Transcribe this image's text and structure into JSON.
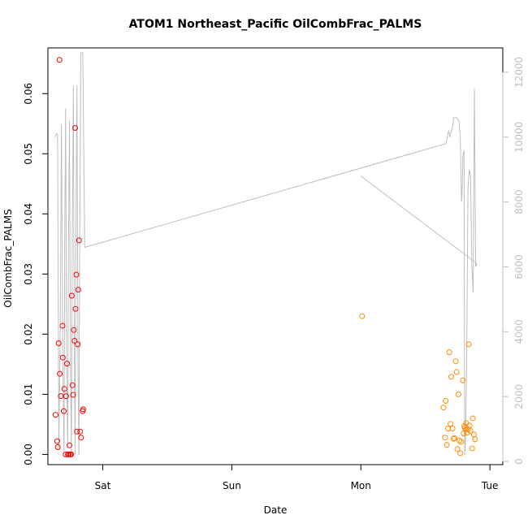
{
  "chart_data": {
    "type": "scatter",
    "title": "ATOM1 Northeast_Pacific OilCombFrac_PALMS",
    "xlabel": "Date",
    "ylabel": "OilCombFrac_PALMS",
    "x_unit": "days from Friday 00:00 (Sat = 1, Sun = 2, Mon = 3, Tue = 4)",
    "x_range": [
      0.575,
      4.1
    ],
    "x_ticks": [
      {
        "label": "Sat",
        "value": 1
      },
      {
        "label": "Sun",
        "value": 2
      },
      {
        "label": "Mon",
        "value": 3
      },
      {
        "label": "Tue",
        "value": 4
      }
    ],
    "ylim": [
      -0.0017,
      0.0676
    ],
    "y_ticks": [
      0.0,
      0.01,
      0.02,
      0.03,
      0.04,
      0.05,
      0.06
    ],
    "y_tick_labels": [
      "0.00",
      "0.01",
      "0.02",
      "0.03",
      "0.04",
      "0.05",
      "0.06"
    ],
    "y2_range": [
      -100,
      12750
    ],
    "y2_ticks": [
      0,
      2000,
      4000,
      6000,
      8000,
      10000,
      12000
    ],
    "y2_tick_labels": [
      "0",
      "2000",
      "4000",
      "6000",
      "8000",
      "10000",
      "12000"
    ],
    "grid": false,
    "legend": "none",
    "colors": {
      "red": "#ff0000",
      "orange": "#ff8c00",
      "gray": "#bebebe",
      "axis": "#000000"
    },
    "series": [
      {
        "color": "red",
        "points": [
          [
            0.635,
            0.0066
          ],
          [
            0.647,
            0.0022
          ],
          [
            0.652,
            0.0012
          ],
          [
            0.658,
            0.0185
          ],
          [
            0.665,
            0.0656
          ],
          [
            0.667,
            0.0134
          ],
          [
            0.675,
            0.0097
          ],
          [
            0.688,
            0.0214
          ],
          [
            0.69,
            0.0161
          ],
          [
            0.698,
            0.0072
          ],
          [
            0.702,
            0.0109
          ],
          [
            0.712,
            0.0
          ],
          [
            0.716,
            0.0097
          ],
          [
            0.723,
            0.0151
          ],
          [
            0.73,
            0.0
          ],
          [
            0.737,
            0.0
          ],
          [
            0.742,
            0.0015
          ],
          [
            0.749,
            0.0
          ],
          [
            0.755,
            0.0
          ],
          [
            0.76,
            0.0264
          ],
          [
            0.766,
            0.0115
          ],
          [
            0.77,
            0.0099
          ],
          [
            0.776,
            0.0207
          ],
          [
            0.781,
            0.0189
          ],
          [
            0.786,
            0.0543
          ],
          [
            0.789,
            0.0242
          ],
          [
            0.795,
            0.0299
          ],
          [
            0.8,
            0.0038
          ],
          [
            0.806,
            0.0183
          ],
          [
            0.81,
            0.0274
          ],
          [
            0.817,
            0.0356
          ],
          [
            0.825,
            0.0038
          ],
          [
            0.832,
            0.0028
          ],
          [
            0.844,
            0.0072
          ],
          [
            0.848,
            0.0075
          ]
        ]
      },
      {
        "color": "orange",
        "points": [
          [
            3.01,
            0.023
          ],
          [
            3.64,
            0.0078
          ],
          [
            3.652,
            0.0028
          ],
          [
            3.657,
            0.0089
          ],
          [
            3.666,
            0.0016
          ],
          [
            3.675,
            0.0043
          ],
          [
            3.685,
            0.017
          ],
          [
            3.694,
            0.0051
          ],
          [
            3.7,
            0.0129
          ],
          [
            3.71,
            0.0043
          ],
          [
            3.718,
            0.0026
          ],
          [
            3.726,
            0.0027
          ],
          [
            3.735,
            0.0155
          ],
          [
            3.742,
            0.0137
          ],
          [
            3.748,
            0.0009
          ],
          [
            3.756,
            0.01
          ],
          [
            3.764,
            0.0023
          ],
          [
            3.77,
            0.0002
          ],
          [
            3.778,
            0.0021
          ],
          [
            3.79,
            0.0123
          ],
          [
            3.796,
            0.0035
          ],
          [
            3.801,
            0.0047
          ],
          [
            3.806,
            0.0044
          ],
          [
            3.812,
            0.0041
          ],
          [
            3.816,
            0.0052
          ],
          [
            3.822,
            0.0036
          ],
          [
            3.829,
            0.0042
          ],
          [
            3.836,
            0.0183
          ],
          [
            3.842,
            0.0048
          ],
          [
            3.85,
            0.0039
          ],
          [
            3.862,
            0.001
          ],
          [
            3.868,
            0.006
          ],
          [
            3.876,
            0.0033
          ],
          [
            3.885,
            0.0025
          ]
        ]
      },
      {
        "color": "gray",
        "axis": "right",
        "style": "line",
        "segments": [
          [
            [
              0.63,
              10000
            ],
            [
              0.64,
              10100
            ],
            [
              0.65,
              10100
            ],
            [
              0.655,
              5000
            ],
            [
              0.66,
              400
            ],
            [
              0.67,
              4000
            ],
            [
              0.68,
              10400
            ],
            [
              0.69,
              3000
            ],
            [
              0.7,
              300
            ],
            [
              0.705,
              7000
            ],
            [
              0.712,
              10900
            ],
            [
              0.72,
              3000
            ],
            [
              0.728,
              400
            ],
            [
              0.735,
              7000
            ],
            [
              0.742,
              10500
            ],
            [
              0.75,
              3000
            ],
            [
              0.757,
              200
            ],
            [
              0.764,
              7000
            ],
            [
              0.772,
              11600
            ],
            [
              0.78,
              3000
            ],
            [
              0.786,
              200
            ],
            [
              0.792,
              7000
            ],
            [
              0.8,
              11600
            ],
            [
              0.808,
              3000
            ],
            [
              0.815,
              200
            ],
            [
              0.822,
              7000
            ],
            [
              0.83,
              12600
            ],
            [
              0.845,
              12600
            ],
            [
              0.86,
              6600
            ],
            [
              3.66,
              9800
            ],
            [
              3.68,
              10200
            ],
            [
              3.69,
              10000
            ],
            [
              3.71,
              10300
            ],
            [
              3.72,
              10600
            ],
            [
              3.74,
              10600
            ],
            [
              3.76,
              10500
            ],
            [
              3.77,
              10000
            ],
            [
              3.78,
              8000
            ],
            [
              3.785,
              8300
            ],
            [
              3.79,
              9400
            ],
            [
              3.8,
              9600
            ],
            [
              3.805,
              200
            ],
            [
              3.81,
              500
            ],
            [
              3.82,
              3000
            ],
            [
              3.83,
              8400
            ],
            [
              3.84,
              9000
            ],
            [
              3.85,
              8800
            ],
            [
              3.86,
              6000
            ],
            [
              3.87,
              5200
            ],
            [
              3.88,
              11500
            ],
            [
              3.89,
              6000
            ],
            [
              3.9,
              6100
            ]
          ],
          [
            [
              3.0,
              8800
            ],
            [
              3.9,
              6100
            ]
          ]
        ]
      }
    ]
  }
}
